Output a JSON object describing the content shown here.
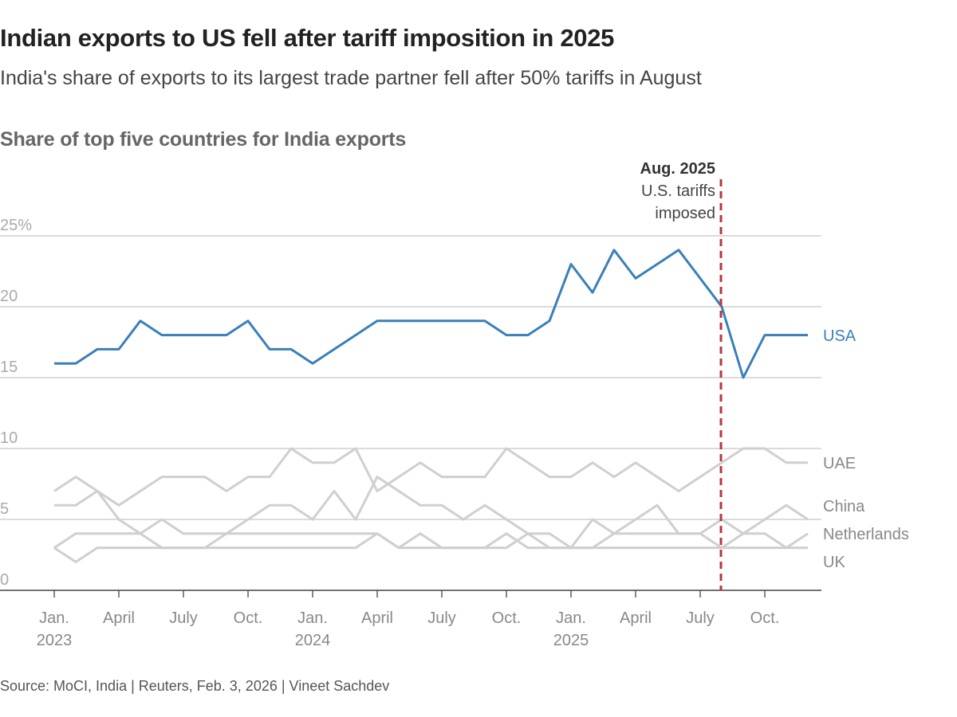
{
  "title": "Indian exports to US fell after tariff imposition in 2025",
  "subtitle": "India's share of exports to its largest trade partner fell after 50% tariffs in August",
  "source": "Source: MoCI, India | Reuters, Feb. 3, 2026 | Vineet Sachdev",
  "chart_data": {
    "type": "line",
    "title": "Share of top five countries for India exports",
    "x_start": "2023-01",
    "x_end": "2025-12",
    "x_frequency": "monthly",
    "ylim": [
      0,
      25
    ],
    "y_ticks": [
      {
        "value": 0,
        "label": "0"
      },
      {
        "value": 5,
        "label": "5"
      },
      {
        "value": 10,
        "label": "10"
      },
      {
        "value": 15,
        "label": "15"
      },
      {
        "value": 20,
        "label": "20"
      },
      {
        "value": 25,
        "label": "25%"
      }
    ],
    "x_ticks": [
      {
        "month_index": 0,
        "label": "Jan.",
        "year": "2023"
      },
      {
        "month_index": 3,
        "label": "April",
        "year": ""
      },
      {
        "month_index": 6,
        "label": "July",
        "year": ""
      },
      {
        "month_index": 9,
        "label": "Oct.",
        "year": ""
      },
      {
        "month_index": 12,
        "label": "Jan.",
        "year": "2024"
      },
      {
        "month_index": 15,
        "label": "April",
        "year": ""
      },
      {
        "month_index": 18,
        "label": "July",
        "year": ""
      },
      {
        "month_index": 21,
        "label": "Oct.",
        "year": ""
      },
      {
        "month_index": 24,
        "label": "Jan.",
        "year": "2025"
      },
      {
        "month_index": 27,
        "label": "April",
        "year": ""
      },
      {
        "month_index": 30,
        "label": "July",
        "year": ""
      },
      {
        "month_index": 33,
        "label": "Oct.",
        "year": ""
      }
    ],
    "grid": true,
    "legend": "direct labels at right end of lines",
    "series": [
      {
        "name": "USA",
        "color": "#3a7fb8",
        "values": [
          16,
          16,
          17,
          17,
          19,
          18,
          18,
          18,
          18,
          19,
          17,
          17,
          16,
          17,
          18,
          19,
          19,
          19,
          19,
          19,
          19,
          18,
          18,
          19,
          23,
          21,
          24,
          22,
          23,
          24,
          22,
          20,
          15,
          18,
          18,
          18
        ]
      },
      {
        "name": "UAE",
        "color": "#cfcfcf",
        "values": [
          7,
          8,
          7,
          6,
          7,
          8,
          8,
          8,
          7,
          8,
          8,
          10,
          9,
          9,
          10,
          7,
          8,
          9,
          8,
          8,
          8,
          10,
          9,
          8,
          8,
          9,
          8,
          9,
          8,
          7,
          8,
          9,
          10,
          10,
          9,
          9
        ]
      },
      {
        "name": "China",
        "color": "#cfcfcf",
        "values": [
          6,
          6,
          7,
          5,
          4,
          3,
          3,
          3,
          4,
          5,
          6,
          6,
          5,
          7,
          5,
          8,
          7,
          6,
          6,
          5,
          6,
          5,
          4,
          3,
          3,
          3,
          4,
          5,
          6,
          4,
          4,
          3,
          4,
          5,
          6,
          5
        ]
      },
      {
        "name": "Netherlands",
        "color": "#cfcfcf",
        "values": [
          3,
          4,
          4,
          4,
          4,
          5,
          4,
          4,
          4,
          4,
          4,
          4,
          4,
          4,
          4,
          4,
          3,
          4,
          3,
          3,
          3,
          3,
          4,
          4,
          3,
          5,
          4,
          4,
          4,
          4,
          4,
          5,
          4,
          4,
          3,
          4
        ]
      },
      {
        "name": "UK",
        "color": "#cfcfcf",
        "values": [
          3,
          2,
          3,
          3,
          3,
          3,
          3,
          3,
          3,
          3,
          3,
          3,
          3,
          3,
          3,
          4,
          3,
          3,
          3,
          3,
          3,
          4,
          3,
          3,
          3,
          3,
          3,
          3,
          3,
          3,
          3,
          3,
          3,
          3,
          3,
          3
        ]
      }
    ],
    "annotation": {
      "month_index": 31,
      "heading": "Aug. 2025",
      "line1": "U.S. tariffs",
      "line2": "imposed",
      "color": "#b5383c",
      "style": "dashed vertical line"
    }
  }
}
